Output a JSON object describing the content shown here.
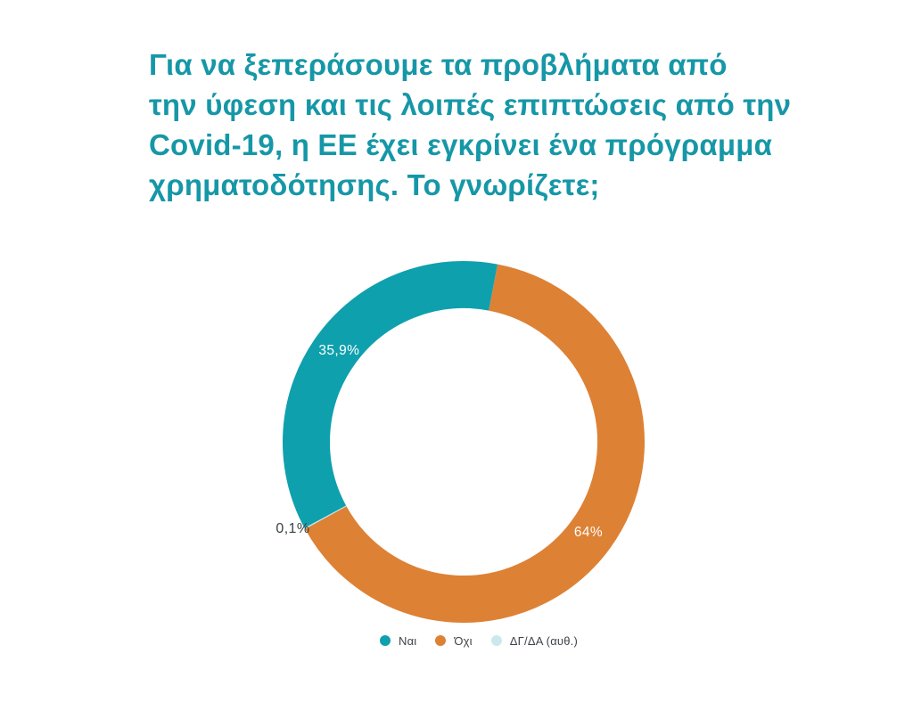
{
  "title": {
    "lines": [
      "Για να ξεπεράσουμε τα προβλήματα από",
      "την ύφεση και τις λοιπές επιπτώσεις από την",
      "Covid-19, η ΕΕ έχει εγκρίνει ένα πρόγραμμα",
      "χρηματοδότησης. Το γνωρίζετε;"
    ],
    "color": "#1697a7"
  },
  "chart_data": {
    "type": "pie",
    "subtype": "donut",
    "title": "Για να ξεπεράσουμε τα προβλήματα από την ύφεση και τις λοιπές επιπτώσεις από την Covid-19, η ΕΕ έχει εγκρίνει ένα πρόγραμμα χρηματοδότησης. Το γνωρίζετε;",
    "legend_position": "bottom",
    "start_angle_deg": 10.8,
    "direction": "clockwise",
    "render_order": [
      1,
      2,
      0
    ],
    "slices": [
      {
        "label": "Ναι",
        "value": 35.9,
        "value_display": "35,9%",
        "color": "#0fa0ad",
        "label_color": "#ffffff",
        "label_placement": "inside"
      },
      {
        "label": "Όχι",
        "value": 64.0,
        "value_display": "64%",
        "color": "#dd8135",
        "label_color": "#ffffff",
        "label_placement": "inside"
      },
      {
        "label": "ΔΓ/ΔΑ (αυθ.)",
        "value": 0.1,
        "value_display": "0,1%",
        "color": "#cbe8ed",
        "label_color": "#3b4245",
        "label_placement": "outside"
      }
    ]
  }
}
